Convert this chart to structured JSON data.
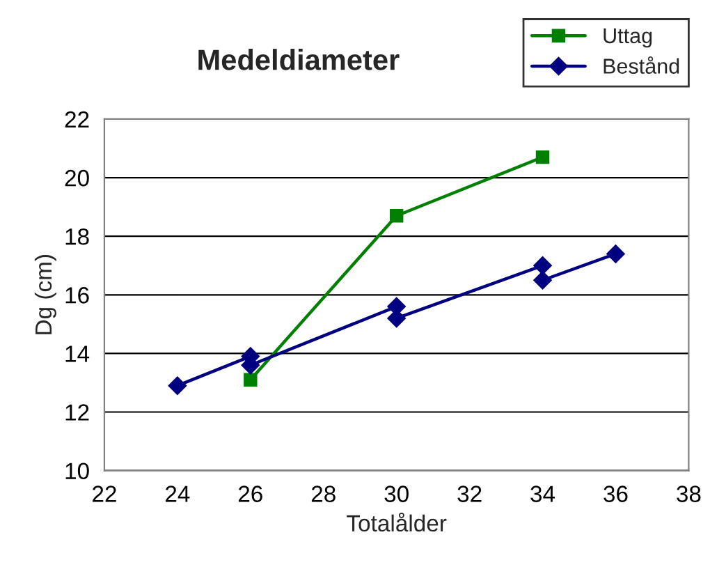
{
  "chart_data": {
    "type": "line",
    "title": "Medeldiameter",
    "xlabel": "Totalålder",
    "ylabel": "Dg (cm)",
    "series": [
      {
        "name": "Uttag",
        "color": "#008000",
        "marker": "square",
        "x": [
          26,
          30,
          34
        ],
        "values": [
          13.1,
          18.7,
          20.7
        ]
      },
      {
        "name": "Bestånd",
        "color": "#000080",
        "marker": "diamond",
        "x": [
          24,
          26,
          26,
          30,
          30,
          34,
          34,
          36
        ],
        "values": [
          12.9,
          13.9,
          13.6,
          15.6,
          15.2,
          17.0,
          16.5,
          17.4
        ]
      }
    ],
    "xlim": [
      22,
      38
    ],
    "xticks": [
      22,
      24,
      26,
      28,
      30,
      32,
      34,
      36,
      38
    ],
    "ylim": [
      10,
      22
    ],
    "yticks": [
      10,
      12,
      14,
      16,
      18,
      20,
      22
    ],
    "grid": "y",
    "legend": "top right",
    "line_style": "solid"
  }
}
